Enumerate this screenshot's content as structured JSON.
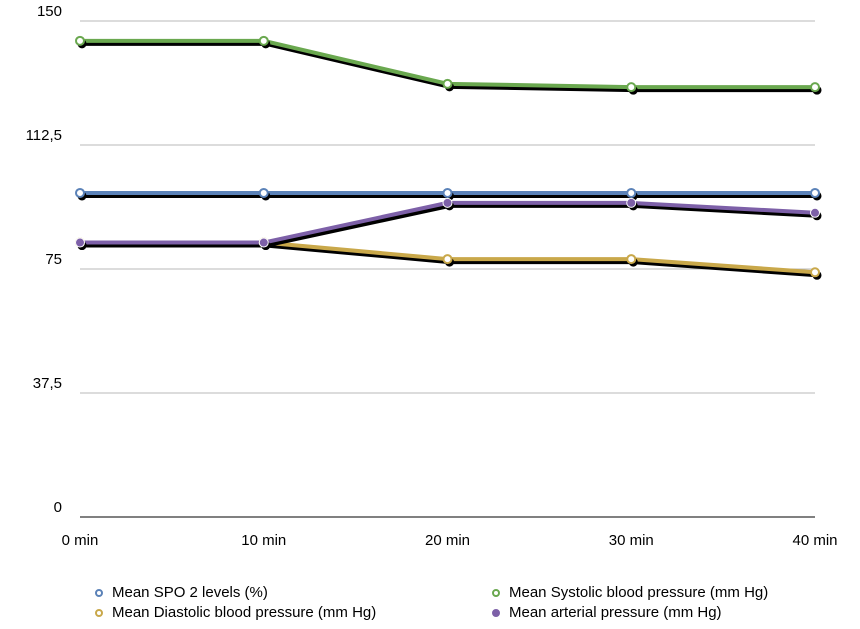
{
  "chart_data": {
    "type": "line",
    "categories": [
      "0 min",
      "10 min",
      "20 min",
      "30 min",
      "40 min"
    ],
    "y_ticks": [
      "0",
      "37,5",
      "75",
      "112,5",
      "150"
    ],
    "ylim": [
      0,
      150
    ],
    "grid": true,
    "legend_position": "bottom",
    "series": [
      {
        "name": "Mean SPO 2 levels (%)",
        "color": "#5b82b8",
        "marker": "open-circle",
        "values": [
          98,
          98,
          98,
          98,
          98
        ]
      },
      {
        "name": "Mean Systolic blood pressure (mm Hg)",
        "color": "#6aa84f",
        "marker": "open-circle",
        "values": [
          144,
          144,
          131,
          130,
          130
        ]
      },
      {
        "name": "Mean Diastolic blood pressure (mm Hg)",
        "color": "#c9a84a",
        "marker": "open-circle",
        "values": [
          83,
          83,
          78,
          78,
          74
        ]
      },
      {
        "name": "Mean arterial pressure (mm Hg)",
        "color": "#7d60a8",
        "marker": "filled-circle",
        "values": [
          83,
          83,
          95,
          95,
          92
        ]
      }
    ]
  }
}
